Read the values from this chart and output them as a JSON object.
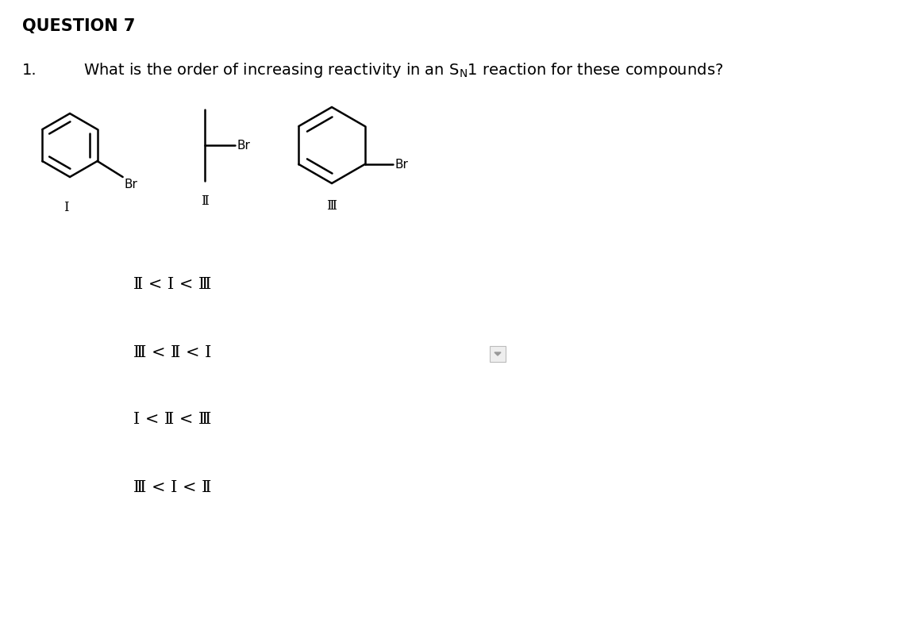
{
  "title": "QUESTION 7",
  "question_num": "1.",
  "background_color": "#ffffff",
  "text_color": "#000000",
  "options": [
    "Ⅱ < Ⅰ < Ⅲ",
    "Ⅲ < Ⅱ < Ⅰ",
    "Ⅰ < Ⅱ < Ⅲ",
    "Ⅲ < Ⅰ < Ⅱ"
  ],
  "compound_labels": [
    "Ⅰ",
    "Ⅱ",
    "Ⅲ"
  ],
  "figsize": [
    11.54,
    7.8
  ],
  "dpi": 100
}
